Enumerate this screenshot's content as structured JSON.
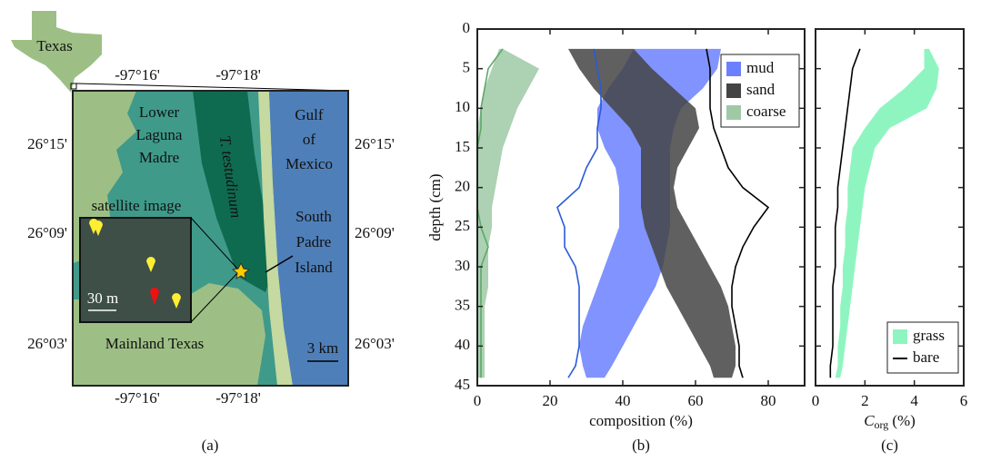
{
  "map": {
    "inset_label": "Texas",
    "lon_ticks": [
      "-97°16'",
      "-97°18'"
    ],
    "lat_ticks": [
      "26°15'",
      "26°09'",
      "26°03'"
    ],
    "labels": [
      "Lower",
      "Laguna",
      "Madre",
      "T. testudinum",
      "Gulf",
      "of",
      "Mexico",
      "South",
      "Padre",
      "Island",
      "Mainland Texas",
      "satellite image",
      "30 m",
      "3 km"
    ],
    "caption": "(a)"
  },
  "chart_data": [
    {
      "type": "area",
      "caption": "(b)",
      "xlabel": "composition (%)",
      "ylabel": "depth (cm)",
      "xlim": [
        0,
        90
      ],
      "xticks": [
        0,
        20,
        40,
        60,
        80
      ],
      "ylim": [
        0,
        45
      ],
      "yticks": [
        0,
        5,
        10,
        15,
        20,
        25,
        30,
        35,
        40,
        45
      ],
      "y_inverted": true,
      "legend": "top right",
      "depth": [
        2.5,
        5,
        7.5,
        10,
        12.5,
        15,
        17.5,
        20,
        22.5,
        25,
        27.5,
        30,
        32.5,
        35,
        37.5,
        40,
        42.5,
        44
      ],
      "series": [
        {
          "name": "mud",
          "color": "#6b80ff",
          "line_color": "#2b5ad8",
          "low": [
            43,
            40,
            36,
            33,
            33,
            35,
            38,
            39,
            39,
            39,
            37,
            35,
            33,
            31,
            29,
            28,
            29,
            30
          ],
          "high": [
            67,
            66,
            62,
            56,
            54,
            53,
            53,
            53,
            53,
            53,
            52,
            51,
            49,
            46,
            43,
            40,
            37,
            35
          ],
          "bare": [
            32,
            33,
            34,
            34,
            33,
            33,
            30,
            28,
            22,
            24,
            24,
            27,
            28,
            28,
            28,
            28,
            27,
            25
          ]
        },
        {
          "name": "sand",
          "color": "#444444",
          "line_color": "#000000",
          "low": [
            25,
            28,
            32,
            37,
            42,
            45,
            45,
            45,
            45,
            46,
            48,
            50,
            52,
            55,
            58,
            61,
            64,
            65
          ],
          "high": [
            43,
            48,
            54,
            60,
            61,
            58,
            55,
            54,
            55,
            58,
            61,
            64,
            67,
            69,
            70,
            71,
            71,
            70
          ],
          "bare": [
            63,
            64,
            64,
            64,
            65,
            67,
            69,
            73,
            80,
            76,
            73,
            71,
            70,
            70,
            71,
            72,
            72,
            73
          ]
        },
        {
          "name": "coarse",
          "color": "#9fc9a6",
          "line_color": "#5ea86a",
          "low": [
            6,
            4,
            2,
            1,
            0,
            0,
            0,
            0,
            0,
            0,
            0,
            0,
            0,
            0,
            0,
            0,
            0,
            0
          ],
          "high": [
            7,
            17,
            14,
            11,
            9,
            7,
            6,
            5,
            4,
            4,
            3,
            3,
            3,
            2,
            2,
            2,
            2,
            2
          ],
          "bare": [
            7,
            3,
            2,
            1,
            1,
            0,
            0,
            0,
            0,
            1,
            3,
            1,
            1,
            1,
            1,
            1,
            1,
            1
          ]
        }
      ]
    },
    {
      "type": "area",
      "caption": "(c)",
      "xlabel": {
        "symbol": "C",
        "subscript": "org",
        "unit": "(%)"
      },
      "xlim": [
        0,
        6
      ],
      "xticks": [
        0,
        2,
        4,
        6
      ],
      "ylim": [
        0,
        45
      ],
      "yticks": [
        0,
        5,
        10,
        15,
        20,
        25,
        30,
        35,
        40,
        45
      ],
      "y_inverted": true,
      "legend": "bottom right",
      "depth": [
        2.5,
        5,
        7.5,
        10,
        12.5,
        15,
        17.5,
        20,
        22.5,
        25,
        27.5,
        30,
        32.5,
        35,
        37.5,
        40,
        42.5,
        44
      ],
      "series": [
        {
          "name": "grass",
          "color": "#8ff5c0",
          "low": [
            4.4,
            4.4,
            3.6,
            2.6,
            2.0,
            1.5,
            1.4,
            1.3,
            1.3,
            1.2,
            1.2,
            1.1,
            1.1,
            1.0,
            1.0,
            0.9,
            0.9,
            0.8
          ],
          "high": [
            4.6,
            5.0,
            4.9,
            4.5,
            3.0,
            2.4,
            2.2,
            2.0,
            1.9,
            1.8,
            1.7,
            1.6,
            1.5,
            1.4,
            1.3,
            1.2,
            1.1,
            1.0
          ]
        },
        {
          "name": "bare",
          "color": "#000000",
          "values": [
            1.8,
            1.5,
            1.4,
            1.3,
            1.2,
            1.1,
            1.0,
            0.9,
            0.9,
            0.8,
            0.8,
            0.8,
            0.7,
            0.7,
            0.7,
            0.7,
            0.6,
            0.6
          ]
        }
      ]
    }
  ]
}
